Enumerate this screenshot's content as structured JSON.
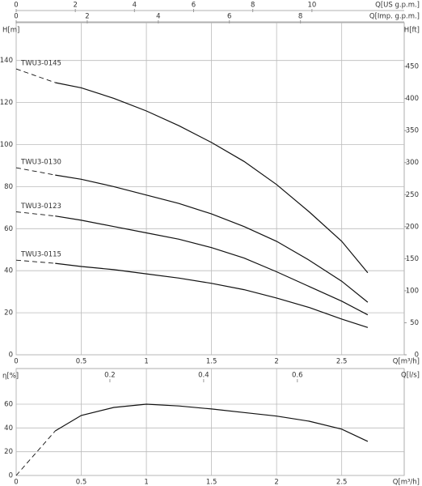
{
  "chart_data": [
    {
      "type": "line",
      "xlabel": "Q[m³/h]",
      "ylabel": "H[m]",
      "y2label": "H[ft]",
      "xlim": [
        0,
        2.98
      ],
      "xticks": [
        0,
        0.5,
        1,
        1.5,
        2,
        2.5
      ],
      "ylim": [
        0,
        158
      ],
      "yticks": [
        0,
        20,
        40,
        60,
        80,
        100,
        120,
        140
      ],
      "y2lim": [
        0,
        518.4
      ],
      "y2ticks": [
        0,
        50,
        100,
        150,
        200,
        250,
        300,
        350,
        400,
        450
      ],
      "grid": true,
      "top_axes": [
        {
          "label": "Q[US g.p.m.]",
          "xlim": [
            0,
            13.12
          ],
          "xticks": [
            0,
            2,
            4,
            6,
            8,
            10
          ]
        },
        {
          "label": "Q[Imp. g.p.m.]",
          "xlim": [
            0,
            10.92
          ],
          "xticks": [
            0,
            2,
            4,
            6,
            8
          ]
        }
      ],
      "series": [
        {
          "name": "TWU3-0145",
          "color": "#111",
          "x": [
            0.3,
            0.5,
            0.75,
            1,
            1.25,
            1.5,
            1.75,
            2,
            2.25,
            2.5,
            2.7
          ],
          "values": [
            129.5,
            127,
            122,
            116,
            109,
            101,
            92,
            81,
            68,
            54,
            39
          ],
          "extension": {
            "x": [
              0,
              0.3
            ],
            "values": [
              136,
              129.5
            ]
          }
        },
        {
          "name": "TWU3-0130",
          "color": "#111",
          "x": [
            0.3,
            0.5,
            0.75,
            1,
            1.25,
            1.5,
            1.75,
            2,
            2.25,
            2.5,
            2.7
          ],
          "values": [
            85.5,
            83.5,
            80,
            76,
            72,
            67,
            61,
            54,
            45,
            35,
            25
          ],
          "extension": {
            "x": [
              0,
              0.3
            ],
            "values": [
              89,
              85.5
            ]
          }
        },
        {
          "name": "TWU3-0123",
          "color": "#111",
          "x": [
            0.3,
            0.5,
            0.75,
            1,
            1.25,
            1.5,
            1.75,
            2,
            2.25,
            2.5,
            2.7
          ],
          "values": [
            66,
            64,
            61,
            58,
            55,
            51,
            46,
            39.5,
            32.5,
            25.5,
            19
          ],
          "extension": {
            "x": [
              0,
              0.3
            ],
            "values": [
              68,
              66
            ]
          }
        },
        {
          "name": "TWU3-0115",
          "color": "#111",
          "x": [
            0.3,
            0.5,
            0.75,
            1,
            1.25,
            1.5,
            1.75,
            2,
            2.25,
            2.5,
            2.7
          ],
          "values": [
            43.5,
            42,
            40.5,
            38.5,
            36.5,
            34,
            31,
            27,
            22.5,
            17,
            13
          ],
          "extension": {
            "x": [
              0,
              0.3
            ],
            "values": [
              45,
              43.5
            ]
          }
        }
      ]
    },
    {
      "type": "line",
      "xlabel": "Q[m³/h]",
      "ylabel": "η[%]",
      "xlim": [
        0,
        2.98
      ],
      "xticks": [
        0,
        0.5,
        1,
        1.5,
        2,
        2.5
      ],
      "ylim": [
        0,
        90
      ],
      "yticks": [
        0,
        20,
        40,
        60
      ],
      "grid": true,
      "top_axes": [
        {
          "label": "Q[l/s]",
          "xlim": [
            0,
            0.828
          ],
          "xticks": [
            0.2,
            0.4,
            0.6
          ]
        }
      ],
      "series": [
        {
          "color": "#111",
          "x": [
            0.3,
            0.5,
            0.75,
            1,
            1.25,
            1.5,
            1.75,
            2,
            2.25,
            2.5,
            2.7
          ],
          "values": [
            37.5,
            50.5,
            57.3,
            60,
            58.5,
            56,
            53,
            50,
            45.7,
            39,
            28.7
          ],
          "extension": {
            "x": [
              0,
              0.3
            ],
            "values": [
              0,
              37.5
            ]
          }
        }
      ]
    }
  ]
}
